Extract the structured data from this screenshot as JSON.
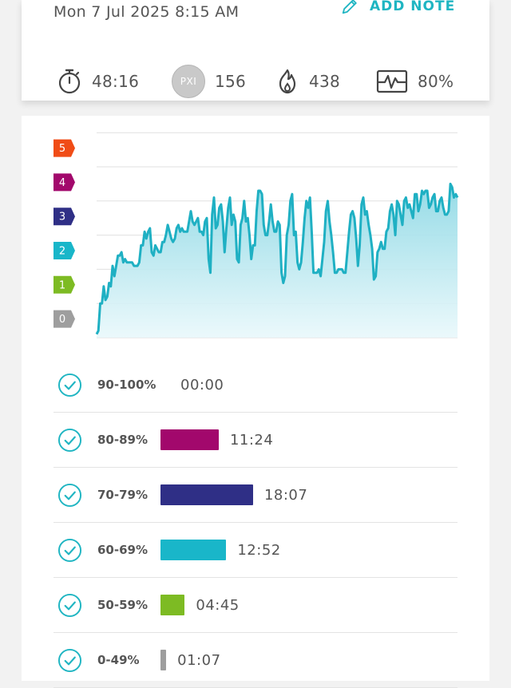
{
  "header": {
    "date": "Mon 7 Jul 2025 8:15 AM",
    "add_note_label": "ADD NOTE"
  },
  "stats": {
    "duration": "48:16",
    "pxi_label": "PXI",
    "pxi": "156",
    "calories": "438",
    "effort": "80%"
  },
  "colors": {
    "accent": "#1fb5c2",
    "zone0": "#9e9e9e",
    "zone1": "#7dbb23",
    "zone2": "#19b6c9",
    "zone3": "#2f2f86",
    "zone4": "#a2086c",
    "zone5": "#f04c16"
  },
  "chart_data": {
    "type": "area",
    "zone_labels": [
      "0",
      "1",
      "2",
      "3",
      "4",
      "5"
    ],
    "ylim": [
      0,
      6
    ],
    "y": [
      0.1,
      0.2,
      1.0,
      1.0,
      1.5,
      1.1,
      1.2,
      1.6,
      1.5,
      2.1,
      1.8,
      2.1,
      2.4,
      2.4,
      2.5,
      2.2,
      2.3,
      2.2,
      2.2,
      2.2,
      2.2,
      2.1,
      2.1,
      2.1,
      2.2,
      2.7,
      2.7,
      3.1,
      2.9,
      3.1,
      3.2,
      2.5,
      2.4,
      2.7,
      2.6,
      2.5,
      2.5,
      2.8,
      2.8,
      3.0,
      3.3,
      3.1,
      2.9,
      2.8,
      2.9,
      3.2,
      3.3,
      3.1,
      3.2,
      3.1,
      3.1,
      3.1,
      3.4,
      3.7,
      3.4,
      3.3,
      3.4,
      3.5,
      3.1,
      3.1,
      3.0,
      3.4,
      3.5,
      2.3,
      1.9,
      3.6,
      4.1,
      3.2,
      3.3,
      3.8,
      3.9,
      3.4,
      2.5,
      3.2,
      3.8,
      4.1,
      3.3,
      3.6,
      3.4,
      2.3,
      2.2,
      3.3,
      3.5,
      4.0,
      3.4,
      3.5,
      3.0,
      2.3,
      2.7,
      2.7,
      3.7,
      4.3,
      4.3,
      4.2,
      3.3,
      3.0,
      3.0,
      3.4,
      3.9,
      3.4,
      3.1,
      3.1,
      3.4,
      3.3,
      1.9,
      1.6,
      1.8,
      3.0,
      3.3,
      4.0,
      4.2,
      3.0,
      3.1,
      2.2,
      2.0,
      2.2,
      2.8,
      3.5,
      4.0,
      3.8,
      4.1,
      3.1,
      1.9,
      1.9,
      1.9,
      2.0,
      1.8,
      2.3,
      2.8,
      3.7,
      4.0,
      3.4,
      3.0,
      2.5,
      1.9,
      1.9,
      2.0,
      2.0,
      2.0,
      1.9,
      1.9,
      2.5,
      3.1,
      3.6,
      3.7,
      3.5,
      2.9,
      2.1,
      2.7,
      3.9,
      4.1,
      3.6,
      3.7,
      3.3,
      3.0,
      2.6,
      1.7,
      1.8,
      2.5,
      2.6,
      2.8,
      2.6,
      2.6,
      3.1,
      3.2,
      3.7,
      3.9,
      3.6,
      3.0,
      4.0,
      3.9,
      3.6,
      3.3,
      4.0,
      4.1,
      3.8,
      3.9,
      3.7,
      3.5,
      4.2,
      4.2,
      3.7,
      3.9,
      4.3,
      4.2,
      4.3,
      4.3,
      3.8,
      3.9,
      4.1,
      4.2,
      3.7,
      3.7,
      4.0,
      4.1,
      3.8,
      3.6,
      3.6,
      3.7,
      4.5,
      4.4,
      4.1,
      4.2,
      4.1
    ]
  },
  "zones": [
    {
      "range": "90-100%",
      "time": "00:00",
      "color": "#f04c16",
      "minutes": 0.0
    },
    {
      "range": "80-89%",
      "time": "11:24",
      "color": "#a2086c",
      "minutes": 11.4
    },
    {
      "range": "70-79%",
      "time": "18:07",
      "color": "#2f2f86",
      "minutes": 18.12
    },
    {
      "range": "60-69%",
      "time": "12:52",
      "color": "#19b6c9",
      "minutes": 12.87
    },
    {
      "range": "50-59%",
      "time": "04:45",
      "color": "#7dbb23",
      "minutes": 4.75
    },
    {
      "range": "0-49%",
      "time": "01:07",
      "color": "#9e9e9e",
      "minutes": 1.12
    }
  ]
}
